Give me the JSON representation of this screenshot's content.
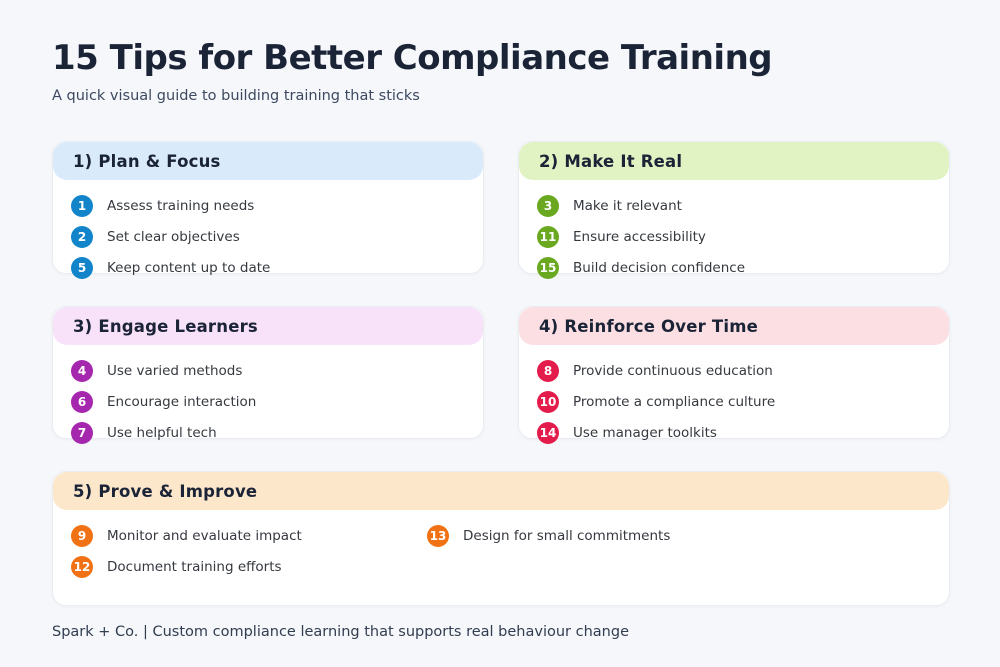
{
  "page": {
    "title": "15 Tips for Better Compliance Training",
    "subtitle": "A quick visual guide to building training that sticks",
    "footer": "Spark + Co. | Custom compliance learning that supports real behaviour change",
    "background_color": "#f5f7fa",
    "title_color": "#1b2337"
  },
  "cards": [
    {
      "title": "1) Plan & Focus",
      "header_bg": "#d9eafb",
      "badge_color": "#1285ca",
      "items": [
        {
          "num": "1",
          "text": "Assess training needs"
        },
        {
          "num": "2",
          "text": "Set clear objectives"
        },
        {
          "num": "5",
          "text": "Keep content up to date"
        }
      ]
    },
    {
      "title": "2) Make It Real",
      "header_bg": "#e1f3c3",
      "badge_color": "#6aa81f",
      "items": [
        {
          "num": "3",
          "text": "Make it relevant"
        },
        {
          "num": "11",
          "text": "Ensure accessibility"
        },
        {
          "num": "15",
          "text": "Build decision confidence"
        }
      ]
    },
    {
      "title": "3) Engage Learners",
      "header_bg": "#f8e2fa",
      "badge_color": "#a527ad",
      "items": [
        {
          "num": "4",
          "text": "Use varied methods"
        },
        {
          "num": "6",
          "text": "Encourage interaction"
        },
        {
          "num": "7",
          "text": "Use helpful tech"
        }
      ]
    },
    {
      "title": "4) Reinforce Over Time",
      "header_bg": "#fcdfe3",
      "badge_color": "#e31c4c",
      "items": [
        {
          "num": "8",
          "text": "Provide continuous education"
        },
        {
          "num": "10",
          "text": "Promote a compliance culture"
        },
        {
          "num": "14",
          "text": "Use manager toolkits"
        }
      ]
    },
    {
      "title": "5) Prove & Improve",
      "header_bg": "#fde7ca",
      "badge_color": "#f07214",
      "items": [
        {
          "num": "9",
          "text": "Monitor and evaluate impact"
        },
        {
          "num": "13",
          "text": "Design for small commitments"
        },
        {
          "num": "12",
          "text": "Document training efforts"
        }
      ]
    }
  ]
}
